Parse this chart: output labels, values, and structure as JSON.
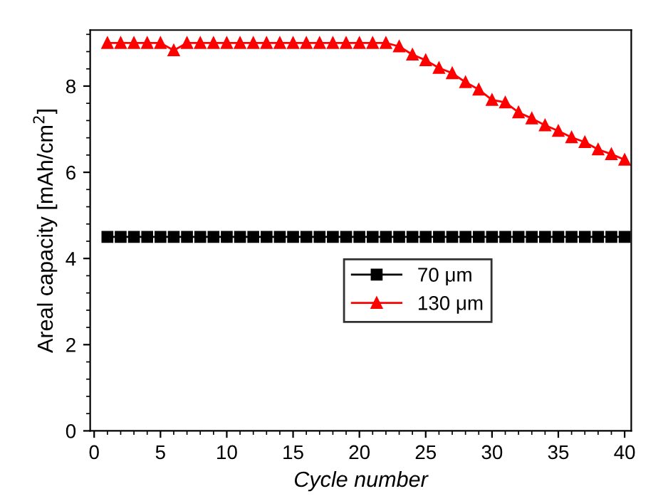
{
  "chart_data": {
    "type": "line",
    "xlabel": "Cycle number",
    "ylabel": "Areal capacity [mAh/cm$^{2}$]",
    "x": [
      1,
      2,
      3,
      4,
      5,
      6,
      7,
      8,
      9,
      10,
      11,
      12,
      13,
      14,
      15,
      16,
      17,
      18,
      19,
      20,
      21,
      22,
      23,
      24,
      25,
      26,
      27,
      28,
      29,
      30,
      31,
      32,
      33,
      34,
      35,
      36,
      37,
      38,
      39,
      40
    ],
    "series": [
      {
        "name": "70 μm",
        "color": "#000000",
        "marker": "square",
        "values": [
          4.5,
          4.5,
          4.5,
          4.5,
          4.5,
          4.5,
          4.5,
          4.5,
          4.5,
          4.5,
          4.5,
          4.5,
          4.5,
          4.5,
          4.5,
          4.5,
          4.5,
          4.5,
          4.5,
          4.5,
          4.5,
          4.5,
          4.5,
          4.5,
          4.5,
          4.5,
          4.5,
          4.5,
          4.5,
          4.5,
          4.5,
          4.5,
          4.5,
          4.5,
          4.5,
          4.5,
          4.5,
          4.5,
          4.5,
          4.5
        ]
      },
      {
        "name": "130 μm",
        "color": "#ff0000",
        "marker": "triangle",
        "values": [
          9.0,
          9.0,
          9.0,
          9.0,
          9.0,
          8.83,
          9.0,
          9.0,
          9.0,
          9.0,
          9.0,
          9.0,
          9.0,
          9.0,
          9.0,
          9.0,
          9.0,
          9.0,
          9.0,
          9.0,
          9.0,
          9.0,
          8.92,
          8.73,
          8.6,
          8.42,
          8.3,
          8.09,
          7.92,
          7.68,
          7.62,
          7.39,
          7.25,
          7.09,
          6.96,
          6.81,
          6.7,
          6.53,
          6.42,
          6.29
        ]
      }
    ],
    "xlim": [
      -0.3,
      40.5
    ],
    "ylim": [
      0,
      9.3
    ],
    "xticks": [
      0,
      5,
      10,
      15,
      20,
      25,
      30,
      35,
      40
    ],
    "yticks": [
      0,
      2,
      4,
      6,
      8
    ],
    "grid": false,
    "legend": "center right",
    "line_style": "solid"
  }
}
